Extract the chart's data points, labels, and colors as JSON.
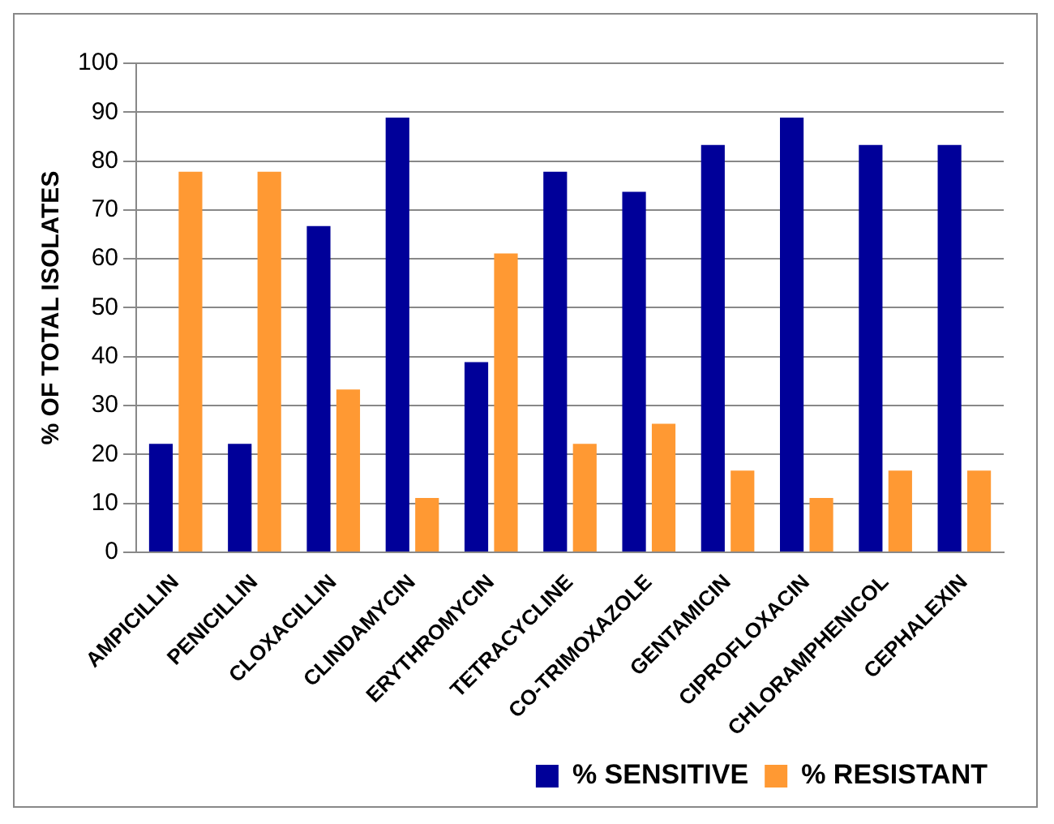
{
  "chart_data": {
    "type": "bar",
    "ylabel": "% OF TOTAL ISOLATES",
    "categories": [
      "AMPICILLIN",
      "PENICILLIN",
      "CLOXACILLIN",
      "CLINDAMYCIN",
      "ERYTHROMYCIN",
      "TETRACYCLINE",
      "CO-TRIMOXAZOLE",
      "GENTAMICIN",
      "CIPROFLOXACIN",
      "CHLORAMPHENICOL",
      "CEPHALEXIN"
    ],
    "series": [
      {
        "name": "% SENSITIVE",
        "color": "#000099",
        "values": [
          22.2,
          22.2,
          66.7,
          88.9,
          38.9,
          77.8,
          73.7,
          83.3,
          88.9,
          83.3,
          83.3
        ]
      },
      {
        "name": "% RESISTANT",
        "color": "#ff9933",
        "values": [
          77.8,
          77.8,
          33.3,
          11.1,
          61.1,
          22.2,
          26.3,
          16.7,
          11.1,
          16.7,
          16.7
        ]
      }
    ],
    "ylim": [
      0,
      100
    ],
    "yticks": [
      0,
      10,
      20,
      30,
      40,
      50,
      60,
      70,
      80,
      90,
      100
    ],
    "grid": "y",
    "legend": "bottom right"
  }
}
